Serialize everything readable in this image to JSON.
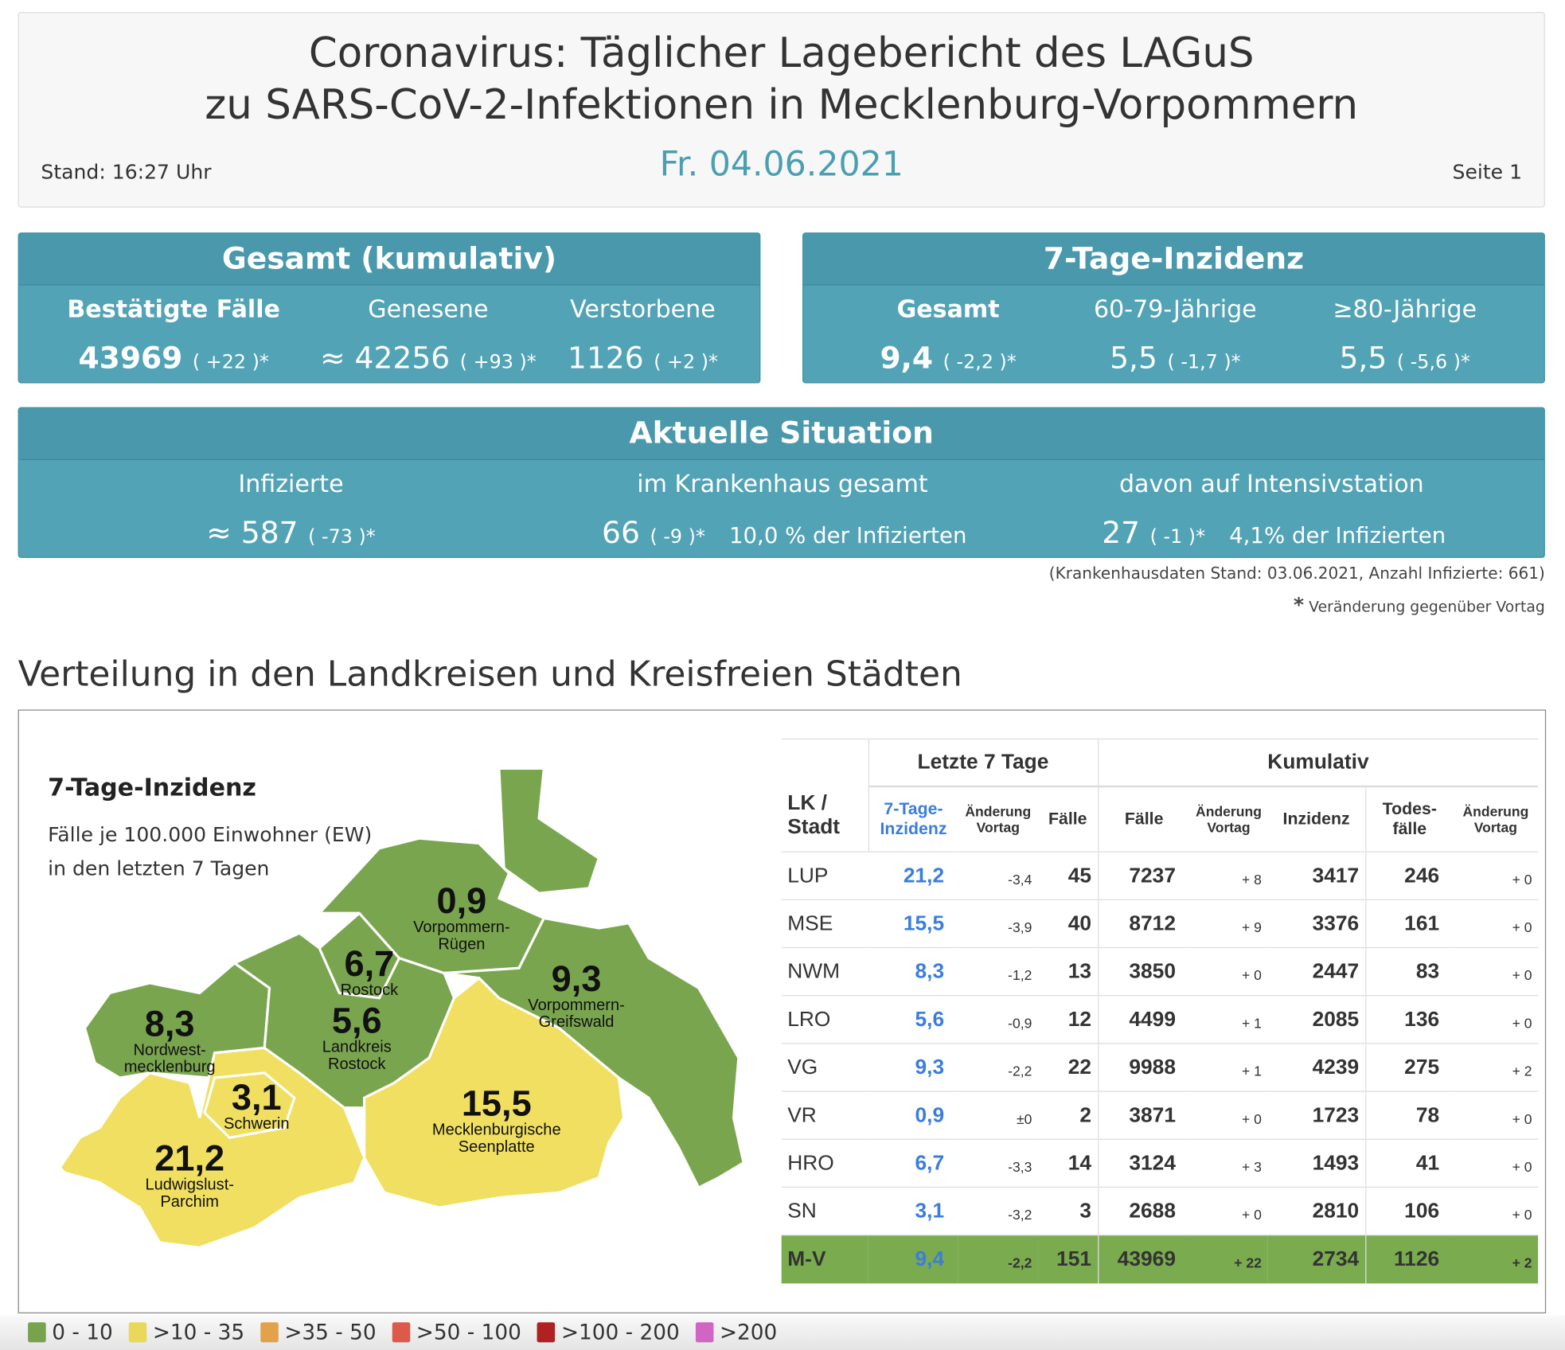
{
  "header": {
    "title_line1": "Coronavirus: Täglicher Lagebericht des LAGuS",
    "title_line2": "zu SARS-CoV-2-Infektionen in Mecklenburg-Vorpommern",
    "date": "Fr. 04.06.2021",
    "stand": "Stand: 16:27 Uhr",
    "page": "Seite 1"
  },
  "gesamt": {
    "title": "Gesamt (kumulativ)",
    "items": [
      {
        "label": "Bestätigte Fälle",
        "value": "43969",
        "change": "( +22 )*"
      },
      {
        "label": "Genesene",
        "value": "≈ 42256",
        "change": "( +93 )*"
      },
      {
        "label": "Verstorbene",
        "value": "1126",
        "change": "( +2 )*"
      }
    ]
  },
  "inzidenz": {
    "title": "7-Tage-Inzidenz",
    "items": [
      {
        "label": "Gesamt",
        "value": "9,4",
        "change": "( -2,2 )*"
      },
      {
        "label": "60-79-Jährige",
        "value": "5,5",
        "change": "( -1,7 )*"
      },
      {
        "label": "≥80-Jährige",
        "value": "5,5",
        "change": "( -5,6 )*"
      }
    ]
  },
  "aktuell": {
    "title": "Aktuelle Situation",
    "items": [
      {
        "label": "Infizierte",
        "value": "≈ 587",
        "change": "( -73 )*",
        "extra": ""
      },
      {
        "label": "im Krankenhaus gesamt",
        "value": "66",
        "change": "( -9 )*",
        "extra": "10,0 % der Infizierten"
      },
      {
        "label": "davon auf Intensivstation",
        "value": "27",
        "change": "( -1 )*",
        "extra": "4,1% der Infizierten"
      }
    ]
  },
  "notes": {
    "hospital": "(Krankenhausdaten Stand: 03.06.2021, Anzahl Infizierte: 661)",
    "star": "*",
    "change_note": "Veränderung gegenüber Vortag"
  },
  "section_title": "Verteilung in den Landkreisen und Kreisfreien Städten",
  "map": {
    "title": "7-Tage-Inzidenz",
    "subtitle1": "Fälle je 100.000 Einwohner (EW)",
    "subtitle2": "in den letzten 7 Tagen",
    "regions": [
      {
        "value": "0,9",
        "name1": "Vorpommern-",
        "name2": "Rügen"
      },
      {
        "value": "6,7",
        "name1": "Rostock",
        "name2": ""
      },
      {
        "value": "9,3",
        "name1": "Vorpommern-",
        "name2": "Greifswald"
      },
      {
        "value": "8,3",
        "name1": "Nordwest-",
        "name2": "mecklenburg"
      },
      {
        "value": "5,6",
        "name1": "Landkreis",
        "name2": "Rostock"
      },
      {
        "value": "3,1",
        "name1": "Schwerin",
        "name2": ""
      },
      {
        "value": "15,5",
        "name1": "Mecklenburgische",
        "name2": "Seenplatte"
      },
      {
        "value": "21,2",
        "name1": "Ludwigslust-",
        "name2": "Parchim"
      }
    ]
  },
  "table": {
    "group1": "Letzte 7 Tage",
    "group2": "Kumulativ",
    "h_lk": "LK / Stadt",
    "h_inz": "7-Tage- Inzidenz",
    "h_aend": "Änderung Vortag",
    "h_faelle": "Fälle",
    "h_kfaelle": "Fälle",
    "h_kaend": "Änderung Vortag",
    "h_kinz": "Inzidenz",
    "h_tod": "Todes- fälle",
    "h_taend": "Änderung Vortag",
    "rows": [
      [
        "LUP",
        "21,2",
        "-3,4",
        "45",
        "7237",
        "+ 8",
        "3417",
        "246",
        "+ 0"
      ],
      [
        "MSE",
        "15,5",
        "-3,9",
        "40",
        "8712",
        "+ 9",
        "3376",
        "161",
        "+ 0"
      ],
      [
        "NWM",
        "8,3",
        "-1,2",
        "13",
        "3850",
        "+ 0",
        "2447",
        "83",
        "+ 0"
      ],
      [
        "LRO",
        "5,6",
        "-0,9",
        "12",
        "4499",
        "+ 1",
        "2085",
        "136",
        "+ 0"
      ],
      [
        "VG",
        "9,3",
        "-2,2",
        "22",
        "9988",
        "+ 1",
        "4239",
        "275",
        "+ 2"
      ],
      [
        "VR",
        "0,9",
        "±0",
        "2",
        "3871",
        "+ 0",
        "1723",
        "78",
        "+ 0"
      ],
      [
        "HRO",
        "6,7",
        "-3,3",
        "14",
        "3124",
        "+ 3",
        "1493",
        "41",
        "+ 0"
      ],
      [
        "SN",
        "3,1",
        "-3,2",
        "3",
        "2688",
        "+ 0",
        "2810",
        "106",
        "+ 0"
      ],
      [
        "M-V",
        "9,4",
        "-2,2",
        "151",
        "43969",
        "+ 22",
        "2734",
        "1126",
        "+ 2"
      ]
    ]
  },
  "legend": [
    {
      "label": "0 - 10",
      "color": "#76a34c"
    },
    {
      "label": ">10 - 35",
      "color": "#e8d95a"
    },
    {
      "label": ">35 - 50",
      "color": "#e2a24a"
    },
    {
      "label": ">50 - 100",
      "color": "#dc5a4a"
    },
    {
      "label": ">100 - 200",
      "color": "#b02222"
    },
    {
      "label": ">200",
      "color": "#d065c4"
    }
  ],
  "colors": {
    "green": "#7aa54f",
    "yellow": "#f0df60",
    "panel": "#52a3b6",
    "date": "#4a9fb0"
  }
}
